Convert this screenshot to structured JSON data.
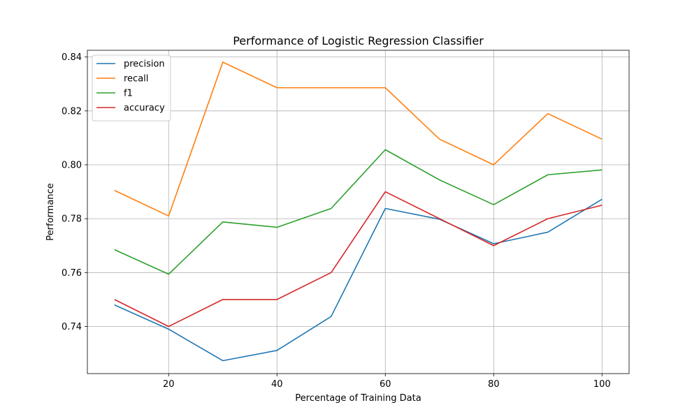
{
  "chart_data": {
    "type": "line",
    "title": "Performance of Logistic Regression Classifier",
    "xlabel": "Percentage of Training Data",
    "ylabel": "Performance",
    "x": [
      10,
      20,
      30,
      40,
      50,
      60,
      70,
      80,
      90,
      100
    ],
    "xlim": [
      5,
      105
    ],
    "ylim": [
      0.7225,
      0.8425
    ],
    "xticks": [
      20,
      40,
      60,
      80,
      100
    ],
    "xtick_labels": [
      "20",
      "40",
      "60",
      "80",
      "100"
    ],
    "yticks": [
      0.74,
      0.76,
      0.78,
      0.8,
      0.82,
      0.84
    ],
    "ytick_labels": [
      "0.74",
      "0.76",
      "0.78",
      "0.80",
      "0.82",
      "0.84"
    ],
    "grid": true,
    "legend_position": "top-left",
    "series": [
      {
        "name": "precision",
        "color": "#1f77b4",
        "values": [
          0.748,
          0.739,
          0.7273,
          0.7311,
          0.7437,
          0.7838,
          0.7798,
          0.7707,
          0.775,
          0.7872
        ]
      },
      {
        "name": "recall",
        "color": "#ff7f0e",
        "values": [
          0.7905,
          0.781,
          0.8381,
          0.8286,
          0.8286,
          0.8286,
          0.8095,
          0.8,
          0.819,
          0.8095
        ]
      },
      {
        "name": "f1",
        "color": "#2ca02c",
        "values": [
          0.7685,
          0.7594,
          0.7788,
          0.7768,
          0.7838,
          0.8056,
          0.7944,
          0.7852,
          0.7963,
          0.7981
        ]
      },
      {
        "name": "accuracy",
        "color": "#d62728",
        "values": [
          0.75,
          0.74,
          0.75,
          0.75,
          0.76,
          0.79,
          0.78,
          0.77,
          0.78,
          0.785
        ]
      }
    ]
  }
}
